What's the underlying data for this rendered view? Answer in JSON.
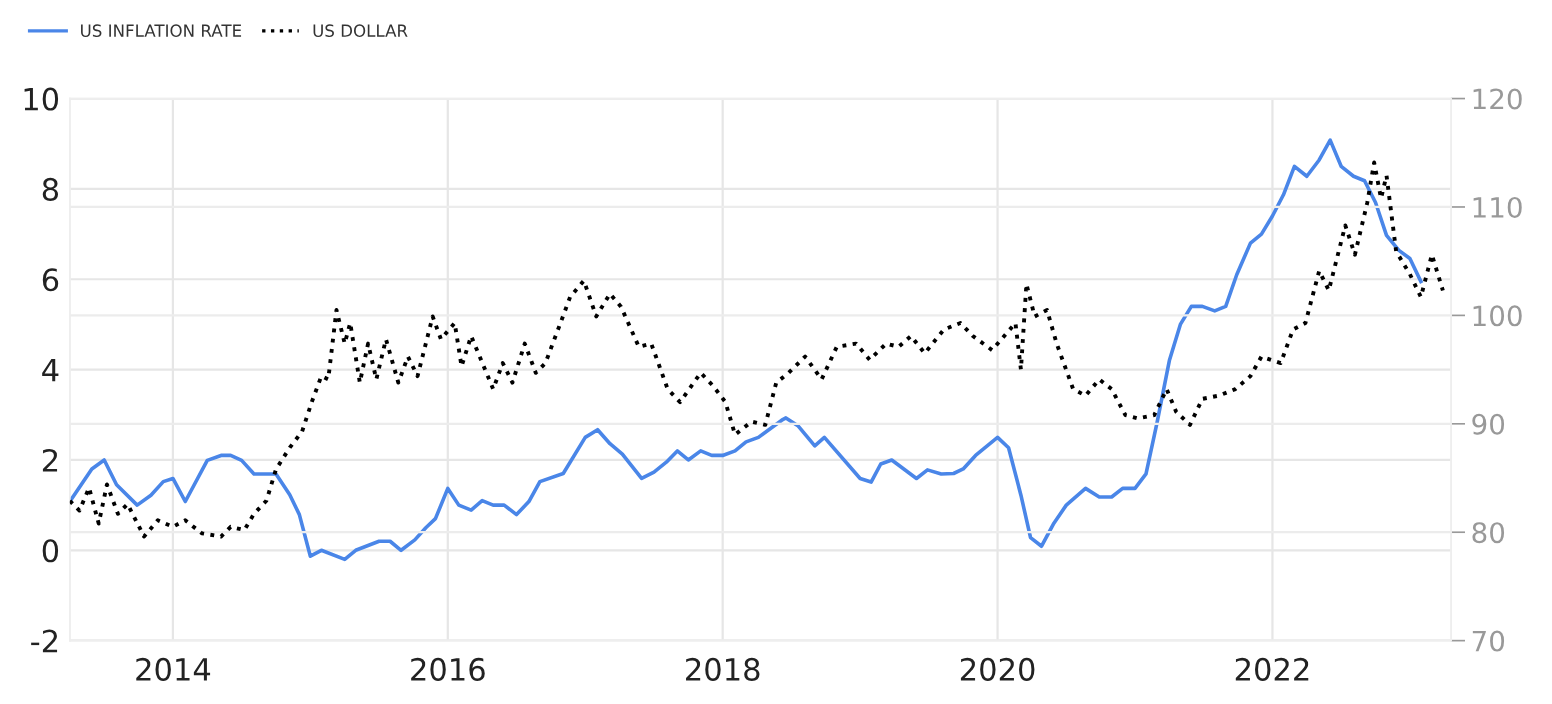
{
  "chart_data": {
    "type": "line",
    "legend": "top left",
    "grid": true,
    "xlim": [
      2013.25,
      2023.3
    ],
    "xticks": [
      2014,
      2016,
      2018,
      2020,
      2022
    ],
    "ylim": [
      -2,
      10
    ],
    "yticks": [
      -2,
      0,
      2,
      4,
      6,
      8,
      10
    ],
    "y2lim": [
      70,
      120
    ],
    "y2ticks": [
      70,
      80,
      90,
      100,
      110,
      120
    ],
    "series": [
      {
        "name": "US INFLATION RATE",
        "color": "#4a86e8",
        "line_style": "solid",
        "x": [
          2013.25,
          2013.41,
          2013.5,
          2013.59,
          2013.74,
          2013.84,
          2013.93,
          2014.0,
          2014.09,
          2014.25,
          2014.35,
          2014.42,
          2014.5,
          2014.59,
          2014.75,
          2014.85,
          2014.92,
          2015.0,
          2015.08,
          2015.25,
          2015.33,
          2015.5,
          2015.58,
          2015.66,
          2015.76,
          2015.84,
          2015.91,
          2016.0,
          2016.08,
          2016.17,
          2016.25,
          2016.33,
          2016.41,
          2016.5,
          2016.59,
          2016.67,
          2016.84,
          2017.0,
          2017.09,
          2017.18,
          2017.27,
          2017.41,
          2017.5,
          2017.59,
          2017.67,
          2017.75,
          2017.84,
          2017.92,
          2018.0,
          2018.09,
          2018.17,
          2018.26,
          2018.43,
          2018.46,
          2018.55,
          2018.67,
          2018.74,
          2019.0,
          2019.08,
          2019.15,
          2019.23,
          2019.41,
          2019.49,
          2019.59,
          2019.68,
          2019.75,
          2019.84,
          2020.0,
          2020.08,
          2020.17,
          2020.24,
          2020.32,
          2020.41,
          2020.5,
          2020.64,
          2020.74,
          2020.83,
          2020.91,
          2021.0,
          2021.08,
          2021.16,
          2021.25,
          2021.33,
          2021.41,
          2021.49,
          2021.58,
          2021.66,
          2021.74,
          2021.84,
          2021.92,
          2022.0,
          2022.08,
          2022.16,
          2022.25,
          2022.34,
          2022.42,
          2022.5,
          2022.59,
          2022.67,
          2022.75,
          2022.83,
          2022.92,
          2023.0,
          2023.08
        ],
        "values": [
          1.08,
          1.8,
          2.0,
          1.45,
          1.0,
          1.22,
          1.52,
          1.59,
          1.08,
          1.99,
          2.1,
          2.1,
          1.99,
          1.69,
          1.69,
          1.23,
          0.79,
          -0.13,
          0,
          -0.2,
          0,
          0.2,
          0.2,
          0,
          0.23,
          0.5,
          0.7,
          1.37,
          1.0,
          0.89,
          1.1,
          1.0,
          1.0,
          0.79,
          1.08,
          1.52,
          1.7,
          2.5,
          2.67,
          2.36,
          2.13,
          1.59,
          1.73,
          1.95,
          2.2,
          2.0,
          2.2,
          2.1,
          2.1,
          2.2,
          2.4,
          2.5,
          2.88,
          2.93,
          2.75,
          2.31,
          2.5,
          1.59,
          1.51,
          1.91,
          2.0,
          1.59,
          1.78,
          1.69,
          1.7,
          1.8,
          2.1,
          2.5,
          2.27,
          1.22,
          0.28,
          0.09,
          0.6,
          1.0,
          1.37,
          1.18,
          1.18,
          1.37,
          1.37,
          1.69,
          2.82,
          4.2,
          5.0,
          5.4,
          5.4,
          5.3,
          5.4,
          6.1,
          6.8,
          7.0,
          7.4,
          7.87,
          8.5,
          8.28,
          8.64,
          9.08,
          8.5,
          8.28,
          8.18,
          7.7,
          6.97,
          6.64,
          6.46,
          5.95
        ]
      },
      {
        "name": "US DOLLAR",
        "color": "#000000",
        "line_style": "dotted",
        "axis": "y2",
        "x": [
          2013.25,
          2013.32,
          2013.39,
          2013.46,
          2013.52,
          2013.6,
          2013.67,
          2013.79,
          2013.89,
          2014.0,
          2014.09,
          2014.21,
          2014.35,
          2014.42,
          2014.52,
          2014.59,
          2014.68,
          2014.75,
          2014.85,
          2014.94,
          2015.01,
          2015.08,
          2015.13,
          2015.19,
          2015.25,
          2015.29,
          2015.36,
          2015.42,
          2015.48,
          2015.55,
          2015.64,
          2015.71,
          2015.78,
          2015.89,
          2015.95,
          2016.05,
          2016.1,
          2016.17,
          2016.33,
          2016.4,
          2016.47,
          2016.56,
          2016.64,
          2016.71,
          2016.82,
          2016.89,
          2016.99,
          2017.08,
          2017.18,
          2017.26,
          2017.39,
          2017.48,
          2017.6,
          2017.69,
          2017.84,
          2017.93,
          2018.02,
          2018.09,
          2018.21,
          2018.31,
          2018.39,
          2018.48,
          2018.6,
          2018.72,
          2018.83,
          2018.97,
          2019.07,
          2019.19,
          2019.28,
          2019.37,
          2019.47,
          2019.61,
          2019.73,
          2019.82,
          2019.96,
          2020.13,
          2020.17,
          2020.21,
          2020.27,
          2020.36,
          2020.43,
          2020.55,
          2020.64,
          2020.74,
          2020.83,
          2020.93,
          2021.02,
          2021.14,
          2021.23,
          2021.3,
          2021.4,
          2021.49,
          2021.61,
          2021.73,
          2021.84,
          2021.92,
          2022.06,
          2022.15,
          2022.24,
          2022.34,
          2022.41,
          2022.53,
          2022.6,
          2022.69,
          2022.74,
          2022.79,
          2022.83,
          2022.9,
          2023.0,
          2023.08,
          2023.16,
          2023.24
        ],
        "values": [
          82.9,
          82.0,
          84.1,
          80.8,
          84.4,
          81.7,
          82.6,
          79.6,
          81.1,
          80.5,
          81.1,
          79.9,
          79.6,
          80.5,
          80.2,
          81.7,
          82.9,
          85.8,
          87.8,
          89.3,
          92.0,
          94.4,
          94.1,
          100.5,
          97.4,
          99.3,
          93.8,
          97.4,
          94.1,
          97.8,
          93.8,
          96.2,
          94.4,
          99.9,
          97.8,
          99.3,
          95.3,
          98.1,
          93.2,
          95.6,
          93.8,
          97.4,
          94.7,
          95.6,
          99.3,
          101.7,
          103.2,
          99.9,
          102.0,
          100.8,
          97.1,
          97.4,
          93.2,
          92.0,
          94.7,
          93.5,
          92.0,
          89.0,
          90.2,
          89.9,
          93.8,
          94.7,
          96.2,
          94.1,
          97.1,
          97.4,
          95.9,
          97.4,
          97.1,
          98.1,
          96.5,
          98.7,
          99.3,
          98.1,
          96.8,
          99.3,
          95.0,
          102.9,
          99.9,
          100.5,
          97.4,
          93.2,
          92.6,
          94.1,
          93.2,
          90.8,
          90.5,
          90.8,
          93.2,
          91.1,
          89.9,
          92.3,
          92.6,
          93.2,
          94.4,
          96.2,
          95.6,
          98.7,
          99.3,
          104.1,
          102.3,
          108.3,
          105.6,
          110.4,
          114.1,
          110.8,
          112.9,
          105.9,
          103.8,
          101.7,
          105.6,
          102.3
        ]
      }
    ]
  }
}
